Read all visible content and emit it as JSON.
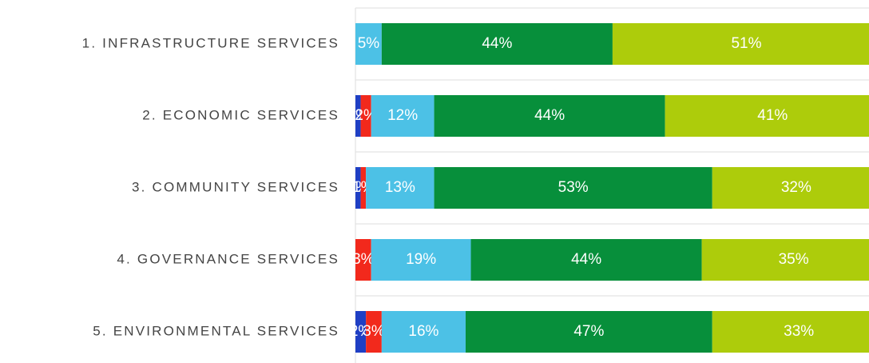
{
  "chart_data": {
    "type": "stacked_barh",
    "categories": [
      "1. INFRASTRUCTURE SERVICES",
      "2. ECONOMIC SERVICES",
      "3. COMMUNITY SERVICES",
      "4. GOVERNANCE SERVICES",
      "5. ENVIRONMENTAL SERVICES"
    ],
    "xlim": [
      0,
      100
    ],
    "series": [
      {
        "color": "#1f3fc4",
        "values": [
          0,
          1,
          1,
          0,
          2
        ],
        "value_labels": [
          null,
          "1%",
          "1%",
          null,
          "2%"
        ]
      },
      {
        "color": "#f2291c",
        "values": [
          0,
          2,
          1,
          3,
          3
        ],
        "value_labels": [
          null,
          "2%",
          "1%",
          "3%",
          "3%"
        ]
      },
      {
        "color": "#4cc1e6",
        "values": [
          5,
          12,
          13,
          19,
          16
        ],
        "value_labels": [
          "5%",
          "12%",
          "13%",
          "19%",
          "16%"
        ]
      },
      {
        "color": "#078f3b",
        "values": [
          44,
          44,
          53,
          44,
          47
        ],
        "value_labels": [
          "44%",
          "44%",
          "53%",
          "44%",
          "47%"
        ]
      },
      {
        "color": "#adcc0b",
        "values": [
          51,
          41,
          32,
          35,
          33
        ],
        "value_labels": [
          "51%",
          "41%",
          "32%",
          "35%",
          "33%"
        ]
      }
    ]
  }
}
